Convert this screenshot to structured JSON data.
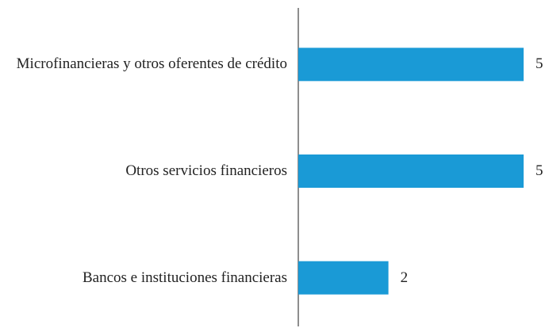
{
  "chart_data": {
    "type": "barh",
    "categories": [
      "Microfinancieras y otros oferentes de crédito",
      "Otros servicios financieros",
      "Bancos e instituciones financieras"
    ],
    "values": [
      5,
      5,
      2
    ],
    "color": "#1a9ad6"
  }
}
